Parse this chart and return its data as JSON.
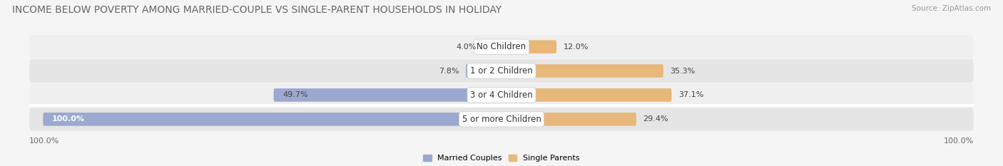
{
  "title": "INCOME BELOW POVERTY AMONG MARRIED-COUPLE VS SINGLE-PARENT HOUSEHOLDS IN HOLIDAY",
  "source": "Source: ZipAtlas.com",
  "categories": [
    "No Children",
    "1 or 2 Children",
    "3 or 4 Children",
    "5 or more Children"
  ],
  "married_values": [
    4.0,
    7.8,
    49.7,
    100.0
  ],
  "single_values": [
    12.0,
    35.3,
    37.1,
    29.4
  ],
  "married_color": "#9ba8d0",
  "single_color": "#e8b87a",
  "row_bg_color_light": "#efefef",
  "row_bg_color_dark": "#e5e5e5",
  "separator_color": "#ffffff",
  "axis_max": 100.0,
  "left_label": "100.0%",
  "right_label": "100.0%",
  "legend_labels": [
    "Married Couples",
    "Single Parents"
  ],
  "title_fontsize": 10,
  "source_fontsize": 7.5,
  "label_fontsize": 8,
  "category_fontsize": 8.5,
  "value_fontsize": 8
}
